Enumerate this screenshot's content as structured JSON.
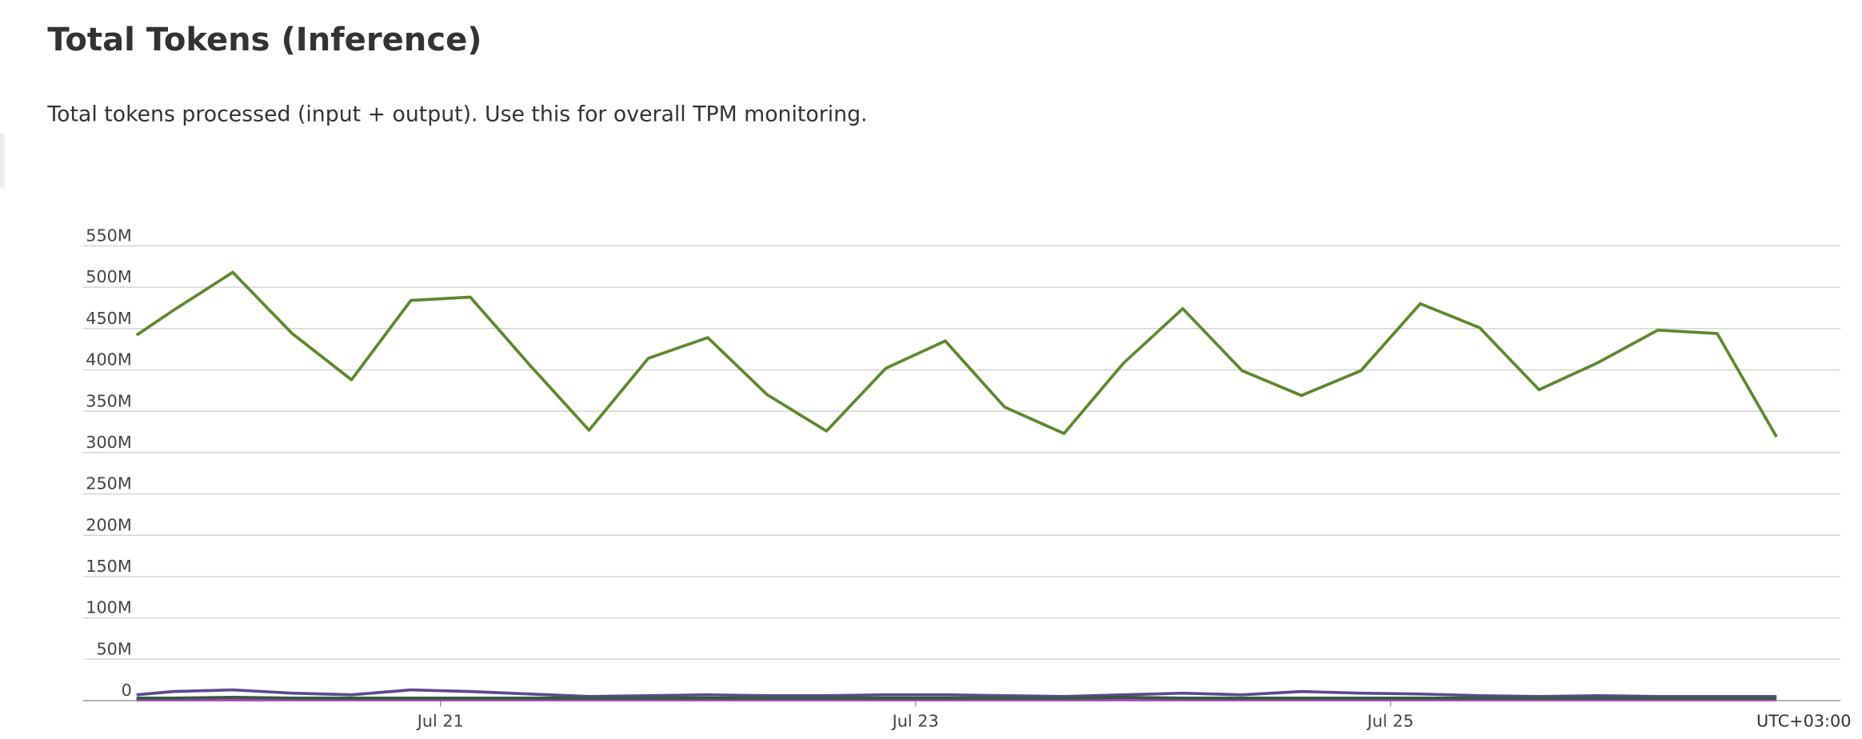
{
  "header": {
    "title": "Total Tokens (Inference)",
    "subtitle": "Total tokens processed (input + output). Use this for overall TPM monitoring."
  },
  "chart_data": {
    "type": "line",
    "timezone_label": "UTC+03:00",
    "x": [
      19.72,
      19.875,
      20.125,
      20.375,
      20.625,
      20.875,
      21.125,
      21.375,
      21.625,
      21.875,
      22.125,
      22.375,
      22.625,
      22.875,
      23.125,
      23.375,
      23.625,
      23.875,
      24.125,
      24.375,
      24.625,
      24.875,
      25.125,
      25.375,
      25.625,
      25.875,
      26.125,
      26.375,
      26.625
    ],
    "xlim": [
      19.72,
      26.895
    ],
    "xticks": [
      {
        "value": 21,
        "label": "Jul 21"
      },
      {
        "value": 23,
        "label": "Jul 23"
      },
      {
        "value": 25,
        "label": "Jul 25"
      }
    ],
    "ylim": [
      0,
      550000000
    ],
    "yticks": [
      {
        "value": 0,
        "label": "0"
      },
      {
        "value": 50000000,
        "label": "50M"
      },
      {
        "value": 100000000,
        "label": "100M"
      },
      {
        "value": 150000000,
        "label": "150M"
      },
      {
        "value": 200000000,
        "label": "200M"
      },
      {
        "value": 250000000,
        "label": "250M"
      },
      {
        "value": 300000000,
        "label": "300M"
      },
      {
        "value": 350000000,
        "label": "350M"
      },
      {
        "value": 400000000,
        "label": "400M"
      },
      {
        "value": 450000000,
        "label": "450M"
      },
      {
        "value": 500000000,
        "label": "500M"
      },
      {
        "value": 550000000,
        "label": "550M"
      }
    ],
    "grid": true,
    "series": [
      {
        "color": "#5b8a2c",
        "values": [
          442000000,
          472000000,
          518000000,
          444000000,
          388000000,
          484000000,
          488000000,
          406000000,
          327000000,
          414000000,
          439000000,
          370000000,
          326000000,
          402000000,
          435000000,
          355000000,
          323000000,
          408000000,
          474000000,
          399000000,
          369000000,
          399000000,
          480000000,
          451000000,
          376000000,
          409000000,
          448000000,
          444000000,
          319000000
        ]
      },
      {
        "color": "#2f5b3a",
        "values": [
          3000000,
          3000000,
          4000000,
          3000000,
          3000000,
          3000000,
          3000000,
          3000000,
          3000000,
          3000000,
          3000000,
          3000000,
          3000000,
          3000000,
          3000000,
          3000000,
          3000000,
          4000000,
          3000000,
          3000000,
          3000000,
          3000000,
          3000000,
          3000000,
          3000000,
          3000000,
          3000000,
          3000000,
          3000000
        ]
      },
      {
        "color": "#5c4a8c",
        "values": [
          7000000,
          11000000,
          13000000,
          9000000,
          7000000,
          13000000,
          11000000,
          8000000,
          5000000,
          6000000,
          7000000,
          6000000,
          6000000,
          7000000,
          7000000,
          6000000,
          5000000,
          7000000,
          9000000,
          7000000,
          11000000,
          9000000,
          8000000,
          6000000,
          5000000,
          6000000,
          5000000,
          5000000,
          5000000
        ]
      },
      {
        "color": "#b040c0",
        "values": [
          1000000,
          1000000,
          1000000,
          1000000,
          1000000,
          1000000,
          1000000,
          1000000,
          1000000,
          1000000,
          1000000,
          1000000,
          1000000,
          1000000,
          1000000,
          1000000,
          1000000,
          1000000,
          1000000,
          1000000,
          1000000,
          1000000,
          1000000,
          1000000,
          1000000,
          1000000,
          1000000,
          1000000,
          1000000
        ]
      }
    ]
  }
}
